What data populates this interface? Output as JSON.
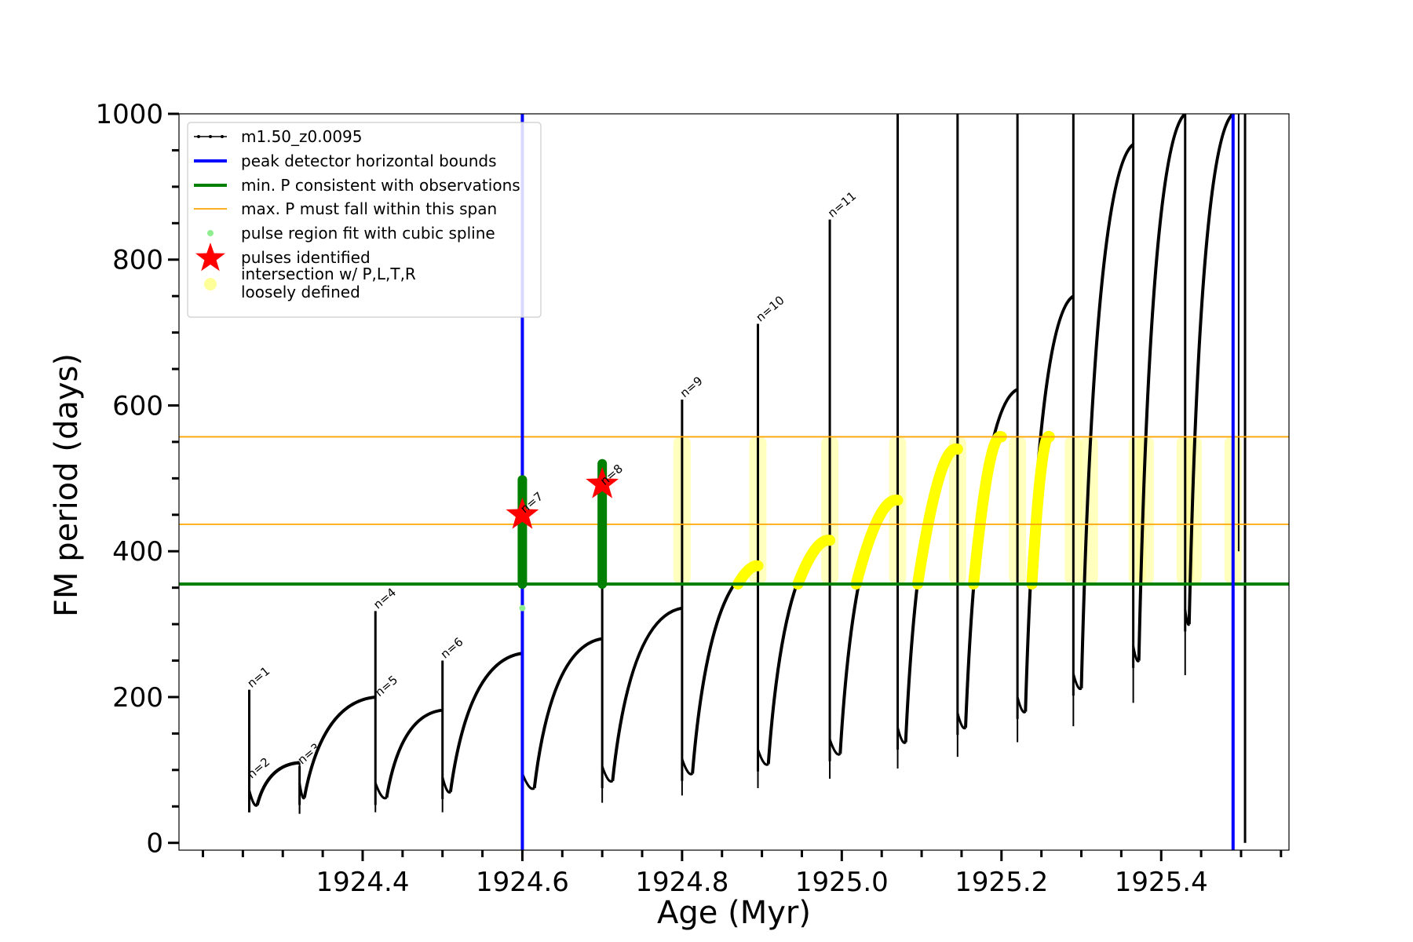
{
  "chart_data": {
    "type": "line",
    "title": "",
    "xlabel": "Age (Myr)",
    "ylabel": "FM period (days)",
    "xlim": [
      1924.17,
      1925.56
    ],
    "ylim": [
      -10,
      1000
    ],
    "x_ticks": [
      1924.4,
      1924.6,
      1924.8,
      1925.0,
      1925.2,
      1925.4
    ],
    "x_tick_labels": [
      "1924.4",
      "1924.6",
      "1924.8",
      "1925.0",
      "1925.2",
      "1925.4"
    ],
    "x_minor_step": 0.05,
    "y_ticks": [
      0,
      200,
      400,
      600,
      800,
      1000
    ],
    "y_tick_labels": [
      "0",
      "200",
      "400",
      "600",
      "800",
      "1000"
    ],
    "y_minor_step": 50,
    "grid": false,
    "legend_position": "top-left",
    "legend": [
      {
        "label": "m1.50_z0.0095",
        "type": "line-marker",
        "color": "#000000"
      },
      {
        "label": "peak detector horizontal bounds",
        "type": "line",
        "color": "#0000ff"
      },
      {
        "label": "min. P consistent with observations",
        "type": "line",
        "color": "#008000"
      },
      {
        "label": "max. P must fall within this span",
        "type": "line",
        "color": "#ffa500"
      },
      {
        "label": "pulse region fit with cubic spline",
        "type": "dot",
        "color": "#90ee90"
      },
      {
        "label": "pulses identified",
        "type": "star",
        "color": "#ff0000"
      },
      {
        "label": "intersection w/ P,L,T,R\nloosely defined",
        "type": "dot",
        "color": "#ffff99"
      }
    ],
    "reference_lines": {
      "vertical_blue": [
        1924.6,
        1925.49
      ],
      "horizontal_green": 355,
      "horizontal_orange": [
        437,
        557
      ]
    },
    "series": [
      {
        "name": "m1.50_z0.0095",
        "color": "#000000",
        "cycles": [
          {
            "label": "n=1",
            "x0": 1924.258,
            "peak": 210,
            "min_x": 1924.268,
            "min": 52,
            "x1": 1924.321,
            "end": 110
          },
          {
            "label": "n=2",
            "x0": 1924.258,
            "peak": 150,
            "min_x": 1924.268,
            "min": 52,
            "x1": 1924.321,
            "end": 110
          },
          {
            "label": "n=3",
            "x0": 1924.321,
            "peak": 105,
            "min_x": 1924.327,
            "min": 62,
            "x1": 1924.416,
            "end": 200
          },
          {
            "label": "n=4",
            "x0": 1924.416,
            "peak": 318,
            "min_x": 1924.43,
            "min": 62,
            "x1": 1924.5,
            "end": 182
          },
          {
            "label": "n=6",
            "x0": 1924.5,
            "peak": 250,
            "min_x": 1924.51,
            "min": 70,
            "x1": 1924.6,
            "end": 260
          },
          {
            "label": "n=7",
            "x0": 1924.6,
            "peak": 498,
            "min_x": 1924.615,
            "min": 75,
            "x1": 1924.7,
            "end": 280
          },
          {
            "label": "n=8",
            "x0": 1924.7,
            "peak": 520,
            "min_x": 1924.713,
            "min": 85,
            "x1": 1924.8,
            "end": 322
          },
          {
            "label": "n=9",
            "x0": 1924.8,
            "peak": 608,
            "min_x": 1924.813,
            "min": 95,
            "x1": 1924.895,
            "end": 380
          },
          {
            "label": "n=10",
            "x0": 1924.895,
            "peak": 712,
            "min_x": 1924.908,
            "min": 108,
            "x1": 1924.985,
            "end": 415
          },
          {
            "label": "n=11",
            "x0": 1924.985,
            "peak": 855,
            "min_x": 1924.998,
            "min": 122,
            "x1": 1925.07,
            "end": 470
          },
          {
            "label": "",
            "x0": 1925.07,
            "peak": 1000,
            "min_x": 1925.08,
            "min": 138,
            "x1": 1925.145,
            "end": 540
          },
          {
            "label": "",
            "x0": 1925.145,
            "peak": 1000,
            "min_x": 1925.155,
            "min": 158,
            "x1": 1925.22,
            "end": 622
          },
          {
            "label": "",
            "x0": 1925.22,
            "peak": 1000,
            "min_x": 1925.23,
            "min": 180,
            "x1": 1925.29,
            "end": 750
          },
          {
            "label": "",
            "x0": 1925.29,
            "peak": 1000,
            "min_x": 1925.3,
            "min": 212,
            "x1": 1925.365,
            "end": 958
          },
          {
            "label": "",
            "x0": 1925.365,
            "peak": 1000,
            "min_x": 1925.372,
            "min": 250,
            "x1": 1925.43,
            "end": 1000
          },
          {
            "label": "",
            "x0": 1925.43,
            "peak": 1000,
            "min_x": 1925.435,
            "min": 300,
            "x1": 1925.49,
            "end": 1000
          }
        ]
      },
      {
        "name": "pulse region fit with cubic spline",
        "color": "#008000",
        "segments": [
          {
            "x": 1924.6,
            "ymin": 355,
            "ymax": 498
          },
          {
            "x": 1924.7,
            "ymin": 355,
            "ymax": 520
          }
        ]
      },
      {
        "name": "pulses identified",
        "color": "#ff0000",
        "points": [
          {
            "x": 1924.6,
            "y": 450
          },
          {
            "x": 1924.7,
            "y": 492
          }
        ]
      },
      {
        "name": "intersection w/ P,L,T,R\nloosely defined",
        "color": "#ffff00",
        "arcs": [
          {
            "x0": 1924.87,
            "y0": 355,
            "x1": 1924.895,
            "y1": 380
          },
          {
            "x0": 1924.945,
            "y0": 355,
            "x1": 1924.985,
            "y1": 415
          },
          {
            "x0": 1925.018,
            "y0": 355,
            "x1": 1925.07,
            "y1": 470
          },
          {
            "x0": 1925.095,
            "y0": 355,
            "x1": 1925.145,
            "y1": 540
          },
          {
            "x0": 1925.165,
            "y0": 355,
            "x1": 1925.2,
            "y1": 557
          },
          {
            "x0": 1925.238,
            "y0": 355,
            "x1": 1925.26,
            "y1": 557
          }
        ],
        "columns": [
          1924.8,
          1924.895,
          1924.985,
          1925.07,
          1925.145,
          1925.22,
          1925.29,
          1925.31,
          1925.37,
          1925.38,
          1925.43,
          1925.44,
          1925.49
        ],
        "range": [
          355,
          557
        ]
      }
    ]
  }
}
